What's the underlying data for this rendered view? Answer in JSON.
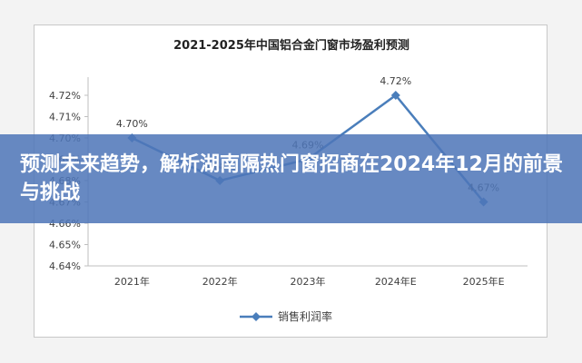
{
  "banner": {
    "title": "预测未来趋势，解析湖南隔热门窗招商在2024年12月的前景与挑战"
  },
  "colors": {
    "line": "#4a7ebb",
    "banner": "#4e76b8",
    "axis": "#bfbfbf",
    "text": "#404040"
  },
  "chart_data": {
    "type": "line",
    "title": "2021-2025年中国铝合金门窗市场盈利预测",
    "categories": [
      "2021年",
      "2022年",
      "2023年",
      "2024年E",
      "2025年E"
    ],
    "series": [
      {
        "name": "销售利润率",
        "values": [
          4.7,
          4.68,
          4.69,
          4.72,
          4.67
        ],
        "labels": [
          "4.70%",
          "4.68%",
          "4.69%",
          "4.72%",
          "4.67%"
        ]
      }
    ],
    "ylim": [
      4.64,
      4.72
    ],
    "yticks": [
      "4.64%",
      "4.65%",
      "4.66%",
      "4.67%",
      "4.68%",
      "4.69%",
      "4.70%",
      "4.71%",
      "4.72%"
    ],
    "ytick_values": [
      4.64,
      4.65,
      4.66,
      4.67,
      4.68,
      4.69,
      4.7,
      4.71,
      4.72
    ],
    "grid": false,
    "legend": "bottom"
  }
}
